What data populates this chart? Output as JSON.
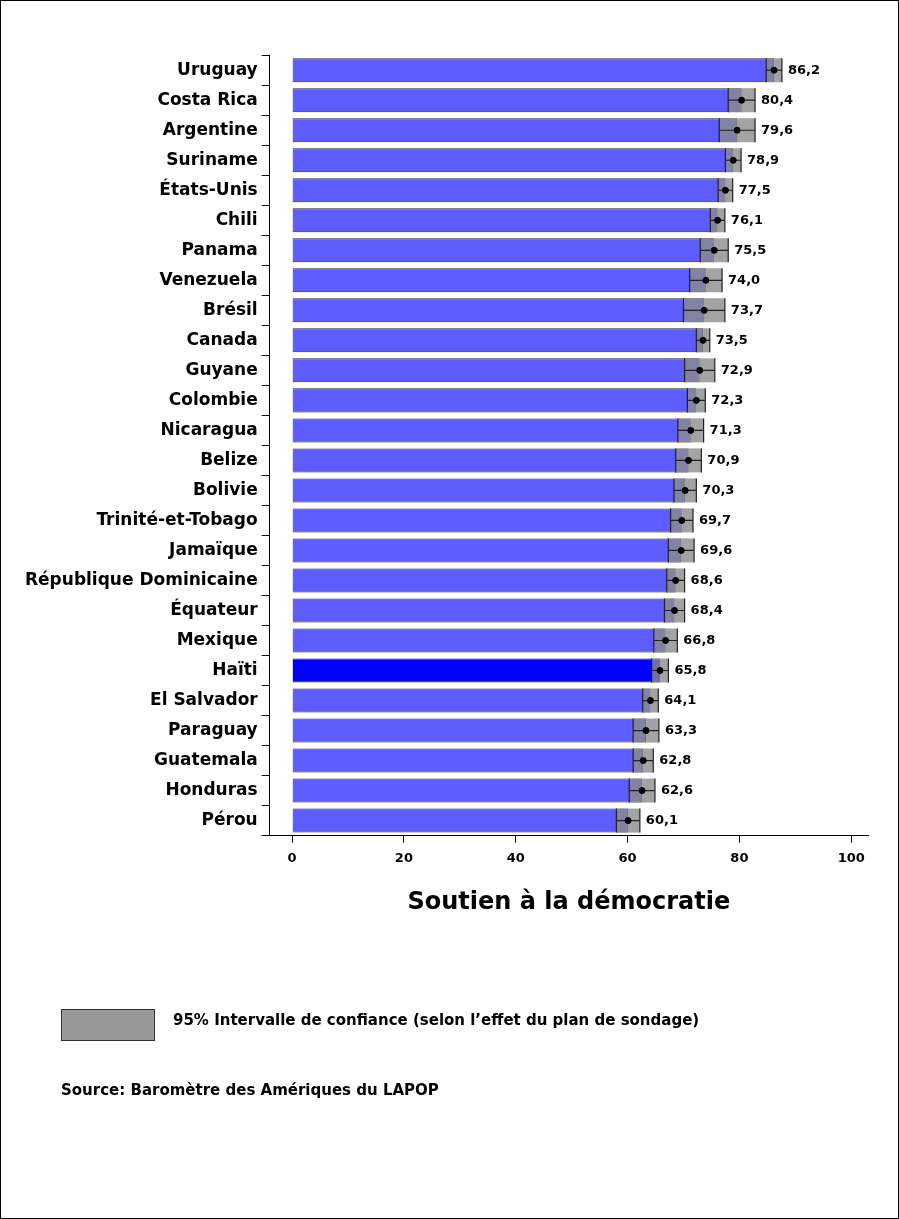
{
  "chart_data": {
    "type": "bar",
    "orientation": "horizontal",
    "xlabel": "Soutien à la démocratie",
    "categories": [
      "Uruguay",
      "Costa Rica",
      "Argentine",
      "Suriname",
      "États-Unis",
      "Chili",
      "Panama",
      "Venezuela",
      "Brésil",
      "Canada",
      "Guyane",
      "Colombie",
      "Nicaragua",
      "Belize",
      "Bolivie",
      "Trinité-et-Tobago",
      "Jamaïque",
      "République Dominicaine",
      "Équateur",
      "Mexique",
      "Haïti",
      "El Salvador",
      "Paraguay",
      "Guatemala",
      "Honduras",
      "Pérou"
    ],
    "series": [
      {
        "colors": [
          "#5c5cff",
          "#5c5cff",
          "#5c5cff",
          "#5c5cff",
          "#5c5cff",
          "#5c5cff",
          "#5c5cff",
          "#5c5cff",
          "#5c5cff",
          "#5c5cff",
          "#5c5cff",
          "#5c5cff",
          "#5c5cff",
          "#5c5cff",
          "#5c5cff",
          "#5c5cff",
          "#5c5cff",
          "#5c5cff",
          "#5c5cff",
          "#5c5cff",
          "#0000ff",
          "#5c5cff",
          "#5c5cff",
          "#5c5cff",
          "#5c5cff",
          "#5c5cff"
        ],
        "values": [
          86.2,
          80.4,
          79.6,
          78.9,
          77.5,
          76.1,
          75.5,
          74.0,
          73.7,
          73.5,
          72.9,
          72.3,
          71.3,
          70.9,
          70.3,
          69.7,
          69.6,
          68.6,
          68.4,
          66.8,
          65.8,
          64.1,
          63.3,
          62.8,
          62.6,
          60.1
        ],
        "errors": [
          1.4,
          2.4,
          3.2,
          1.4,
          1.3,
          1.3,
          2.5,
          2.9,
          3.7,
          1.2,
          2.7,
          1.6,
          2.3,
          2.3,
          2.0,
          2.0,
          2.3,
          1.6,
          1.8,
          2.1,
          1.5,
          1.4,
          2.3,
          1.8,
          2.3,
          2.1
        ],
        "value_labels": [
          "86,2",
          "80,4",
          "79,6",
          "78,9",
          "77,5",
          "76,1",
          "75,5",
          "74,0",
          "73,7",
          "73,5",
          "72,9",
          "72,3",
          "71,3",
          "70,9",
          "70,3",
          "69,7",
          "69,6",
          "68,6",
          "68,4",
          "66,8",
          "65,8",
          "64,1",
          "63,3",
          "62,8",
          "62,6",
          "60,1"
        ]
      },
      {
        "type": "scatter",
        "color": "#000000",
        "marker": "circle",
        "values": [
          86.2,
          80.4,
          79.6,
          78.9,
          77.5,
          76.1,
          75.5,
          74.0,
          73.7,
          73.5,
          72.9,
          72.3,
          71.3,
          70.9,
          70.3,
          69.7,
          69.6,
          68.6,
          68.4,
          66.8,
          65.8,
          64.1,
          63.3,
          62.8,
          62.6,
          60.1
        ]
      }
    ],
    "xlim": [
      -4,
      103
    ],
    "xticks": [
      0,
      20,
      40,
      60,
      80,
      100
    ],
    "grid": false,
    "legend": false,
    "annotations": [
      "95% Intervalle de confiance (selon l’effet du plan de sondage)",
      "Source: Baromètre des Amériques du LAPOP"
    ]
  }
}
